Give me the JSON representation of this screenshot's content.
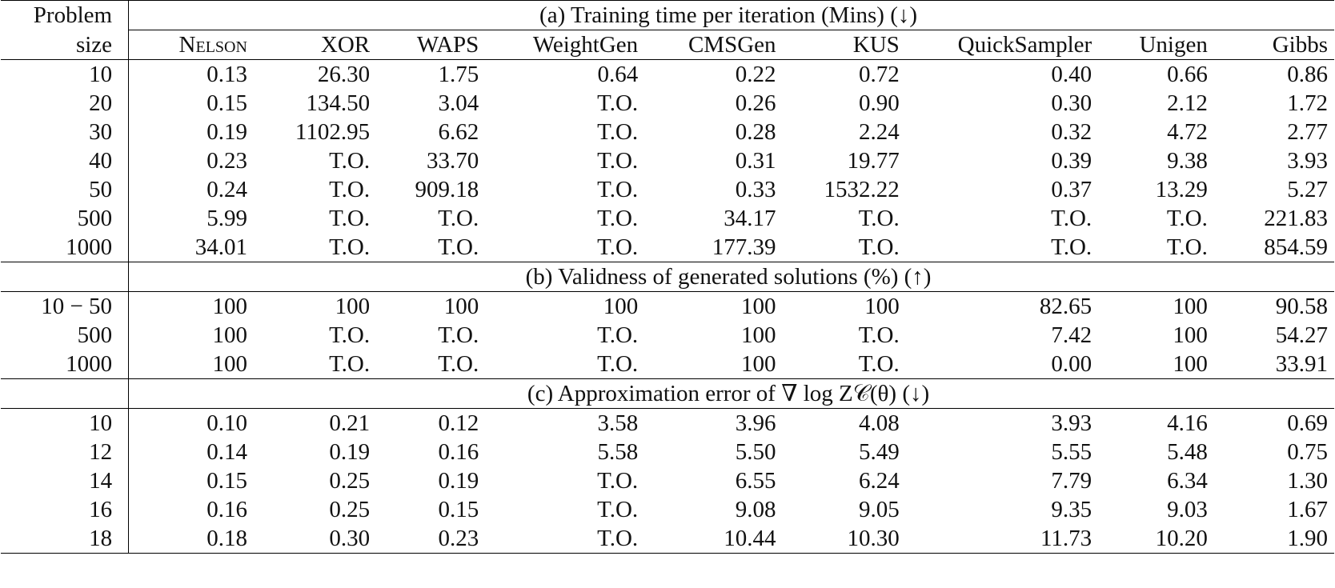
{
  "header": {
    "size_label_line1": "Problem",
    "size_label_line2": "size",
    "columns": [
      "Nelson",
      "XOR",
      "WAPS",
      "WeightGen",
      "CMSGen",
      "KUS",
      "QuickSampler",
      "Unigen",
      "Gibbs"
    ]
  },
  "sections": [
    {
      "title": "(a) Training time per iteration (Mins) (↓)",
      "rows": [
        {
          "size": "10",
          "cells": [
            {
              "v": "0.13",
              "b": true
            },
            {
              "v": "26.30"
            },
            {
              "v": "1.75"
            },
            {
              "v": "0.64"
            },
            {
              "v": "0.22"
            },
            {
              "v": "0.72"
            },
            {
              "v": "0.40"
            },
            {
              "v": "0.66"
            },
            {
              "v": "0.86"
            }
          ]
        },
        {
          "size": "20",
          "cells": [
            {
              "v": "0.15",
              "b": true
            },
            {
              "v": "134.50"
            },
            {
              "v": "3.04"
            },
            {
              "v": "T.O."
            },
            {
              "v": "0.26"
            },
            {
              "v": "0.90"
            },
            {
              "v": "0.30"
            },
            {
              "v": "2.12"
            },
            {
              "v": "1.72"
            }
          ]
        },
        {
          "size": "30",
          "cells": [
            {
              "v": "0.19",
              "b": true
            },
            {
              "v": "1102.95"
            },
            {
              "v": "6.62"
            },
            {
              "v": "T.O."
            },
            {
              "v": "0.28"
            },
            {
              "v": "2.24"
            },
            {
              "v": "0.32"
            },
            {
              "v": "4.72"
            },
            {
              "v": "2.77"
            }
          ]
        },
        {
          "size": "40",
          "cells": [
            {
              "v": "0.23",
              "b": true
            },
            {
              "v": "T.O."
            },
            {
              "v": "33.70"
            },
            {
              "v": "T.O."
            },
            {
              "v": "0.31"
            },
            {
              "v": "19.77"
            },
            {
              "v": "0.39"
            },
            {
              "v": "9.38"
            },
            {
              "v": "3.93"
            }
          ]
        },
        {
          "size": "50",
          "cells": [
            {
              "v": "0.24",
              "b": true
            },
            {
              "v": "T.O."
            },
            {
              "v": "909.18"
            },
            {
              "v": "T.O."
            },
            {
              "v": "0.33"
            },
            {
              "v": "1532.22"
            },
            {
              "v": "0.37"
            },
            {
              "v": "13.29"
            },
            {
              "v": "5.27"
            }
          ]
        },
        {
          "size": "500",
          "cells": [
            {
              "v": "5.99",
              "b": true
            },
            {
              "v": "T.O."
            },
            {
              "v": "T.O."
            },
            {
              "v": "T.O."
            },
            {
              "v": "34.17"
            },
            {
              "v": "T.O."
            },
            {
              "v": "T.O."
            },
            {
              "v": "T.O."
            },
            {
              "v": "221.83"
            }
          ]
        },
        {
          "size": "1000",
          "cells": [
            {
              "v": "34.01",
              "b": true
            },
            {
              "v": "T.O."
            },
            {
              "v": "T.O."
            },
            {
              "v": "T.O."
            },
            {
              "v": "177.39"
            },
            {
              "v": "T.O."
            },
            {
              "v": "T.O."
            },
            {
              "v": "T.O."
            },
            {
              "v": "854.59"
            }
          ]
        }
      ]
    },
    {
      "title": "(b) Validness of generated solutions (%) (↑)",
      "rows": [
        {
          "size": "10 − 50",
          "cells": [
            {
              "v": "100",
              "b": true
            },
            {
              "v": "100",
              "b": true
            },
            {
              "v": "100",
              "b": true
            },
            {
              "v": "100",
              "b": true
            },
            {
              "v": "100",
              "b": true
            },
            {
              "v": "100",
              "b": true
            },
            {
              "v": "82.65"
            },
            {
              "v": "100",
              "b": true
            },
            {
              "v": "90.58"
            }
          ]
        },
        {
          "size": "500",
          "cells": [
            {
              "v": "100",
              "b": true
            },
            {
              "v": "T.O."
            },
            {
              "v": "T.O."
            },
            {
              "v": "T.O."
            },
            {
              "v": "100",
              "b": true
            },
            {
              "v": "T.O."
            },
            {
              "v": "7.42"
            },
            {
              "v": "100",
              "b": true
            },
            {
              "v": "54.27"
            }
          ]
        },
        {
          "size": "1000",
          "cells": [
            {
              "v": "100",
              "b": true
            },
            {
              "v": "T.O."
            },
            {
              "v": "T.O."
            },
            {
              "v": "T.O."
            },
            {
              "v": "100",
              "b": true
            },
            {
              "v": "T.O."
            },
            {
              "v": "0.00"
            },
            {
              "v": "100",
              "b": true
            },
            {
              "v": "33.91"
            }
          ]
        }
      ]
    },
    {
      "title": "(c) Approximation error of ∇ log Z𝒞(θ) (↓)",
      "rows": [
        {
          "size": "10",
          "cells": [
            {
              "v": "0.10",
              "b": true
            },
            {
              "v": "0.21"
            },
            {
              "v": "0.12"
            },
            {
              "v": "3.58"
            },
            {
              "v": "3.96"
            },
            {
              "v": "4.08"
            },
            {
              "v": "3.93"
            },
            {
              "v": "4.16"
            },
            {
              "v": "0.69"
            }
          ]
        },
        {
          "size": "12",
          "cells": [
            {
              "v": "0.14",
              "b": true
            },
            {
              "v": "0.19"
            },
            {
              "v": "0.16"
            },
            {
              "v": "5.58"
            },
            {
              "v": "5.50"
            },
            {
              "v": "5.49"
            },
            {
              "v": "5.55"
            },
            {
              "v": "5.48"
            },
            {
              "v": "0.75"
            }
          ]
        },
        {
          "size": "14",
          "cells": [
            {
              "v": "0.15",
              "b": true
            },
            {
              "v": "0.25"
            },
            {
              "v": "0.19"
            },
            {
              "v": "T.O."
            },
            {
              "v": "6.55"
            },
            {
              "v": "6.24"
            },
            {
              "v": "7.79"
            },
            {
              "v": "6.34"
            },
            {
              "v": "1.30"
            }
          ]
        },
        {
          "size": "16",
          "cells": [
            {
              "v": "0.16"
            },
            {
              "v": "0.25"
            },
            {
              "v": "0.15",
              "b": true
            },
            {
              "v": "T.O."
            },
            {
              "v": "9.08"
            },
            {
              "v": "9.05"
            },
            {
              "v": "9.35"
            },
            {
              "v": "9.03"
            },
            {
              "v": "1.67"
            }
          ]
        },
        {
          "size": "18",
          "cells": [
            {
              "v": "0.18",
              "b": true
            },
            {
              "v": "0.30"
            },
            {
              "v": "0.23"
            },
            {
              "v": "T.O."
            },
            {
              "v": "10.44"
            },
            {
              "v": "10.30"
            },
            {
              "v": "11.73"
            },
            {
              "v": "10.20"
            },
            {
              "v": "1.90"
            }
          ]
        }
      ]
    }
  ]
}
